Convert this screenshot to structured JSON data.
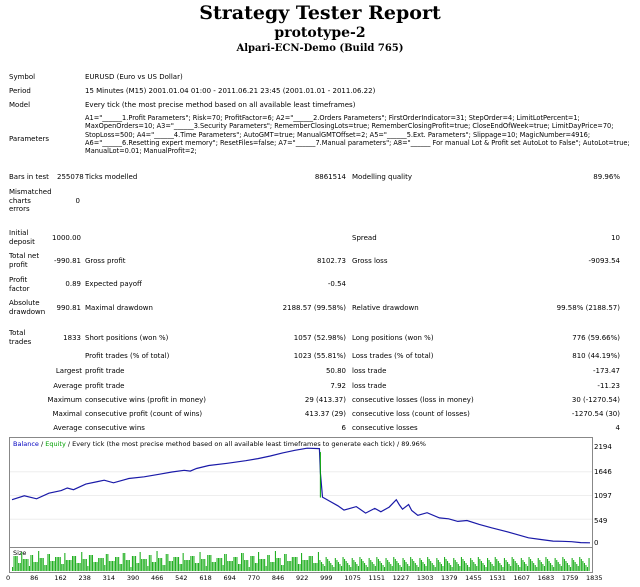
{
  "header": {
    "title": "Strategy Tester Report",
    "subtitle": "prototype-2",
    "server": "Alpari-ECN-Demo (Build 765)"
  },
  "info": {
    "symbol_label": "Symbol",
    "symbol_value": "EURUSD (Euro vs US Dollar)",
    "period_label": "Period",
    "period_value": "15 Minutes (M15) 2001.01.04 01:00 - 2011.06.21 23:45 (2001.01.01 - 2011.06.22)",
    "model_label": "Model",
    "model_value": "Every tick (the most precise method based on all available least timeframes)",
    "parameters_label": "Parameters",
    "parameters_value": "A1=\"______1.Profit Parameters\"; Risk=70; ProfitFactor=6; A2=\"______2.Orders Parameters\"; FirstOrderIndicator=31; StepOrder=4; LimitLotPercent=1; MaxOpenOrders=10; A3=\"______3.Security Parameters\"; RememberClosingLots=true; RememberClosingProfit=true; CloseEndOfWeek=true; LimitDayPrice=70; StopLoss=500; A4=\"______4.Time Parameters\"; AutoGMT=true; ManualGMTOffset=2; A5=\"______5.Ext. Parameters\"; Slippage=10; MagicNumber=4916; A6=\"______6.Resetting expert memory\"; ResetFiles=false; A7=\"______7.Manual parameters\"; A8=\"______ For manual Lot & Profit set AutoLot to False\"; AutoLot=true; ManualLot=0.01; ManualProfit=2;"
  },
  "stats": {
    "bars_label": "Bars in test",
    "bars_value": "255078",
    "ticks_label": "Ticks modelled",
    "ticks_value": "8861514",
    "quality_label": "Modelling quality",
    "quality_value": "89.96%",
    "mismatched_label": "Mismatched charts errors",
    "mismatched_value": "0",
    "deposit_label": "Initial deposit",
    "deposit_value": "1000.00",
    "spread_label": "Spread",
    "spread_value": "10",
    "netprofit_label": "Total net profit",
    "netprofit_value": "-990.81",
    "grossprofit_label": "Gross profit",
    "grossprofit_value": "8102.73",
    "grossloss_label": "Gross loss",
    "grossloss_value": "-9093.54",
    "pf_label": "Profit factor",
    "pf_value": "0.89",
    "ep_label": "Expected payoff",
    "ep_value": "-0.54",
    "absdd_label": "Absolute drawdown",
    "absdd_value": "990.81",
    "maxdd_label": "Maximal drawdown",
    "maxdd_value": "2188.57 (99.58%)",
    "reldd_label": "Relative drawdown",
    "reldd_value": "99.58% (2188.57)",
    "trades_label": "Total trades",
    "trades_value": "1833",
    "short_label": "Short positions (won %)",
    "short_value": "1057 (52.98%)",
    "long_label": "Long positions (won %)",
    "long_value": "776 (59.66%)",
    "pt_label": "Profit trades (% of total)",
    "pt_value": "1023 (55.81%)",
    "lt_label": "Loss trades (% of total)",
    "lt_value": "810 (44.19%)",
    "largest_label": "Largest",
    "largest_p_label": "profit trade",
    "largest_p_value": "50.80",
    "largest_l_label": "loss trade",
    "largest_l_value": "-173.47",
    "average_label": "Average",
    "average_p_label": "profit trade",
    "average_p_value": "7.92",
    "average_l_label": "loss trade",
    "average_l_value": "-11.23",
    "maximum_label": "Maximum",
    "maximum_p_label": "consecutive wins (profit in money)",
    "maximum_p_value": "29 (413.37)",
    "maximum_l_label": "consecutive losses (loss in money)",
    "maximum_l_value": "30 (-1270.54)",
    "maximal_label": "Maximal",
    "maximal_p_label": "consecutive profit (count of wins)",
    "maximal_p_value": "413.37 (29)",
    "maximal_l_label": "consecutive loss (count of losses)",
    "maximal_l_value": "-1270.54 (30)",
    "avgc_label": "Average",
    "avgc_p_label": "consecutive wins",
    "avgc_p_value": "6",
    "avgc_l_label": "consecutive losses",
    "avgc_l_value": "4"
  },
  "chart_data": {
    "type": "line",
    "legend_balance": "Balance",
    "legend_sep": " / ",
    "legend_equity": "Equity",
    "legend_rest": " / Every tick (the most precise method based on all available least timeframes to generate each tick) / 89.96%",
    "y_ticks": [
      "2194",
      "1646",
      "1097",
      "549",
      "0"
    ],
    "x_ticks": [
      "0",
      "86",
      "162",
      "238",
      "314",
      "390",
      "466",
      "542",
      "618",
      "694",
      "770",
      "846",
      "922",
      "999",
      "1075",
      "1151",
      "1227",
      "1303",
      "1379",
      "1455",
      "1531",
      "1607",
      "1683",
      "1759",
      "1835"
    ],
    "ylim": [
      0,
      2194
    ],
    "xlim": [
      0,
      1880
    ],
    "size_label": "Size",
    "balance_x": [
      0,
      40,
      80,
      120,
      160,
      180,
      200,
      240,
      280,
      300,
      330,
      380,
      430,
      480,
      520,
      560,
      580,
      600,
      640,
      700,
      760,
      800,
      840,
      880,
      920,
      960,
      1000,
      1003,
      1010,
      1030,
      1060,
      1080,
      1120,
      1150,
      1180,
      1200,
      1227,
      1250,
      1260,
      1270,
      1290,
      1300,
      1320,
      1350,
      1390,
      1420,
      1450,
      1480,
      1520,
      1560,
      1600,
      1640,
      1680,
      1720,
      1760,
      1790,
      1820,
      1850,
      1880
    ],
    "balance_y": [
      1000,
      1090,
      1020,
      1150,
      1210,
      1270,
      1230,
      1360,
      1420,
      1450,
      1390,
      1490,
      1530,
      1590,
      1640,
      1680,
      1660,
      1720,
      1790,
      1840,
      1900,
      1950,
      2010,
      2080,
      2140,
      2190,
      2180,
      1620,
      1060,
      980,
      860,
      760,
      840,
      690,
      800,
      720,
      830,
      1000,
      880,
      780,
      890,
      750,
      640,
      700,
      580,
      560,
      500,
      520,
      430,
      350,
      280,
      200,
      120,
      80,
      45,
      40,
      30,
      10,
      5
    ]
  }
}
